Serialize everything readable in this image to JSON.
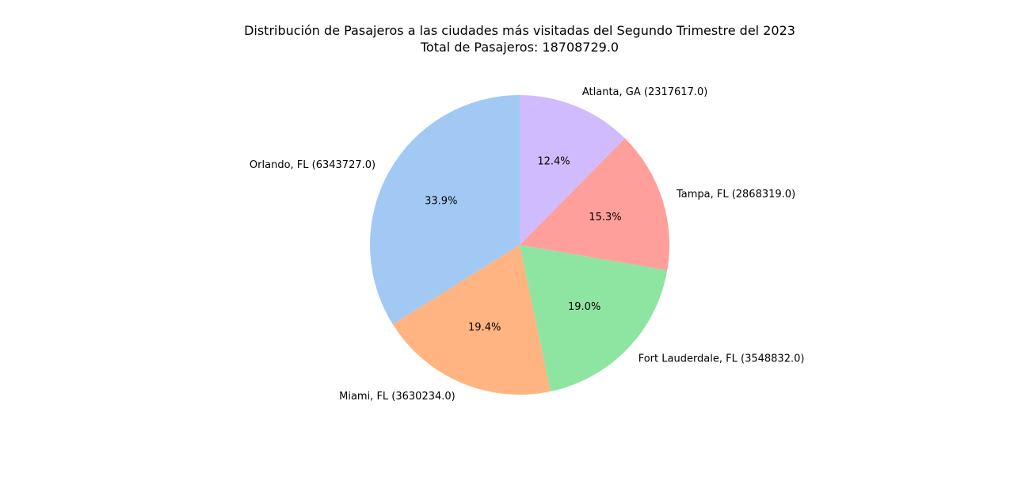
{
  "chart_data": {
    "type": "pie",
    "title": "Distribución de Pasajeros a las ciudades más visitadas del Segundo Trimestre del 2023",
    "subtitle": "Total de Pasajeros: 18708729.0",
    "start_angle_deg": 90,
    "direction": "counterclockwise",
    "slices": [
      {
        "label": "Orlando, FL (6343727.0)",
        "value": 6343727.0,
        "pct_label": "33.9%",
        "color": "#a1c9f4"
      },
      {
        "label": "Miami, FL (3630234.0)",
        "value": 3630234.0,
        "pct_label": "19.4%",
        "color": "#ffb482"
      },
      {
        "label": "Fort Lauderdale, FL (3548832.0)",
        "value": 3548832.0,
        "pct_label": "19.0%",
        "color": "#8de5a1"
      },
      {
        "label": "Tampa, FL (2868319.0)",
        "value": 2868319.0,
        "pct_label": "15.3%",
        "color": "#ff9f9b"
      },
      {
        "label": "Atlanta, GA (2317617.0)",
        "value": 2317617.0,
        "pct_label": "12.4%",
        "color": "#d0bbff"
      }
    ]
  }
}
